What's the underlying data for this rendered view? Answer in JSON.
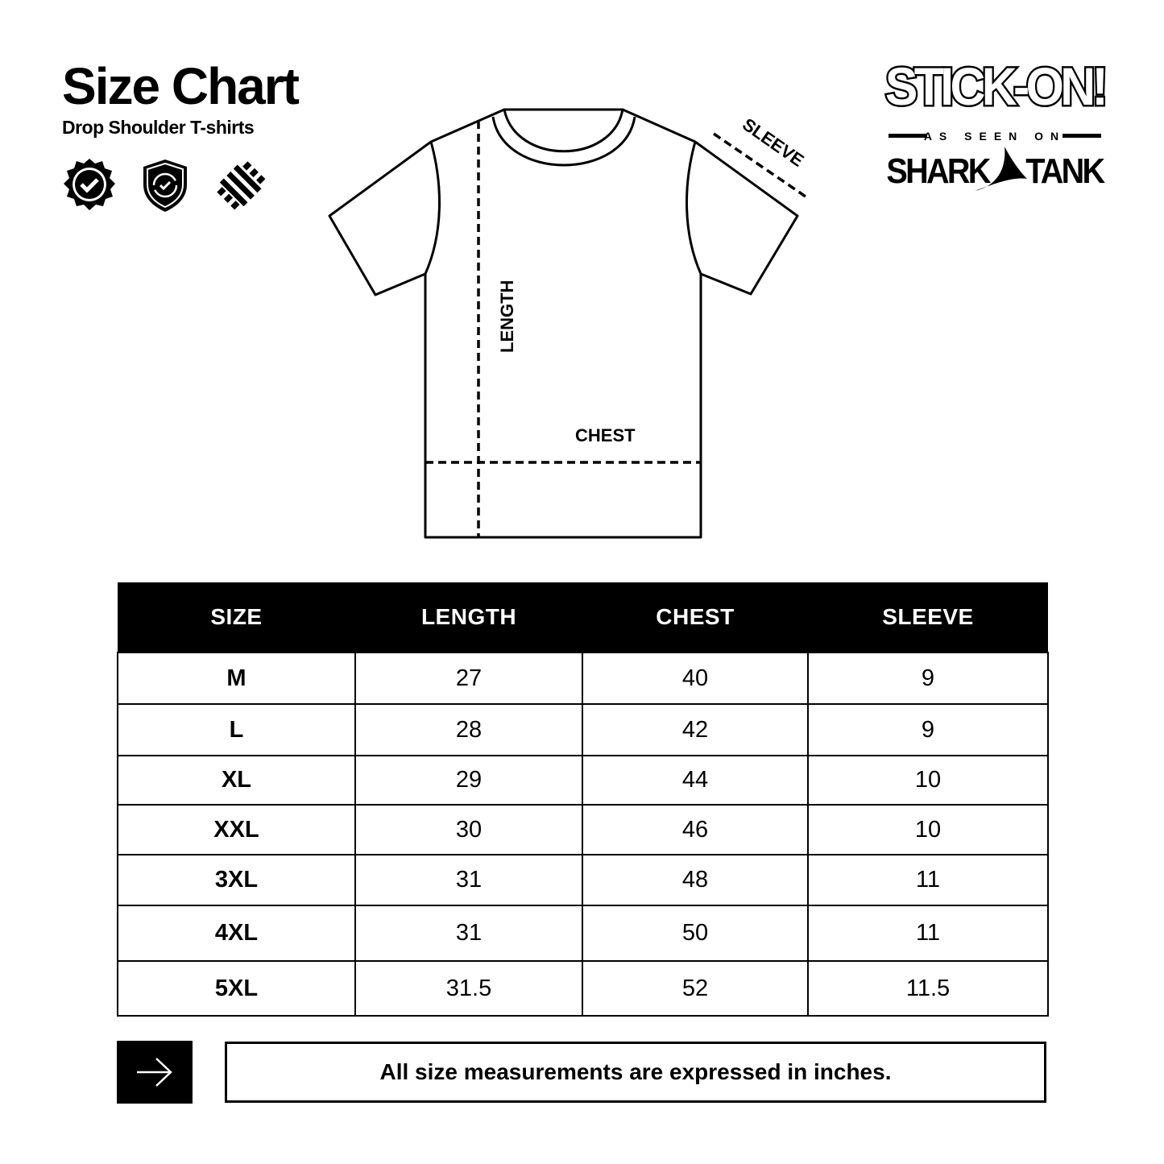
{
  "header": {
    "title": "Size Chart",
    "subtitle": "Drop Shoulder T-shirts"
  },
  "feature_icons": [
    "quality-badge-check-icon",
    "shield-refresh-icon",
    "woven-fabric-icon"
  ],
  "brand": {
    "logo_text": "STICK-ON!",
    "tagline": "AS SEEN ON",
    "show": "SHARK TANK"
  },
  "diagram": {
    "length_label": "LENGTH",
    "chest_label": "CHEST",
    "sleeve_label": "SLEEVE"
  },
  "table": {
    "headers": [
      "SIZE",
      "LENGTH",
      "CHEST",
      "SLEEVE"
    ],
    "rows": [
      [
        "M",
        "27",
        "40",
        "9"
      ],
      [
        "L",
        "28",
        "42",
        "9"
      ],
      [
        "XL",
        "29",
        "44",
        "10"
      ],
      [
        "XXL",
        "30",
        "46",
        "10"
      ],
      [
        "3XL",
        "31",
        "48",
        "11"
      ],
      [
        "4XL",
        "31",
        "50",
        "11"
      ],
      [
        "5XL",
        "31.5",
        "52",
        "11.5"
      ]
    ]
  },
  "footer": {
    "icon": "arrow-right-icon",
    "note": "All size measurements are expressed in inches."
  }
}
